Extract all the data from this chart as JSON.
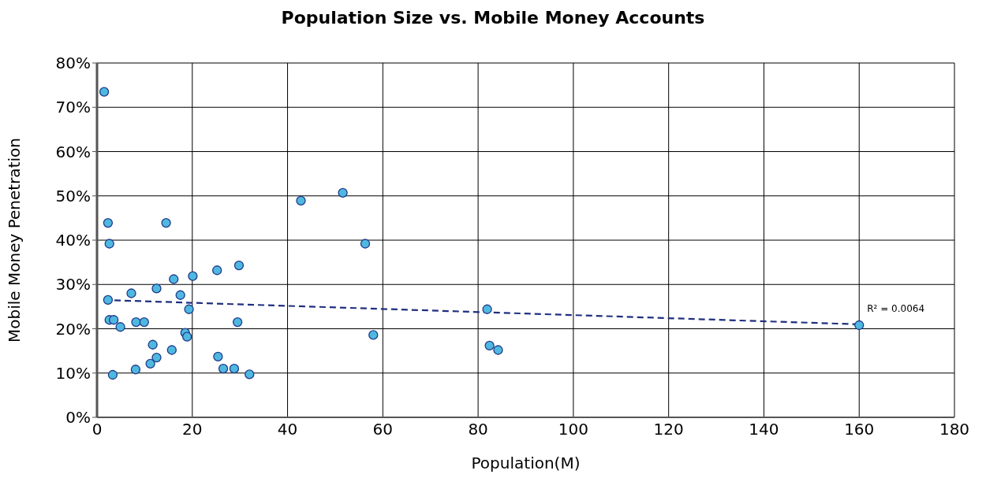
{
  "chart_data": {
    "type": "scatter",
    "title": "Population Size vs. Mobile Money Accounts",
    "xlabel": "Population(M)",
    "ylabel": "Mobile Money Penetration",
    "xlim": [
      0,
      180
    ],
    "xticks": [
      0,
      20,
      40,
      60,
      80,
      100,
      120,
      140,
      160,
      180
    ],
    "ylim": [
      0,
      80
    ],
    "yticks": [
      {
        "value": 0,
        "label": "0%"
      },
      {
        "value": 10,
        "label": "10%"
      },
      {
        "value": 20,
        "label": "20%"
      },
      {
        "value": 30,
        "label": "30%"
      },
      {
        "value": 40,
        "label": "40%"
      },
      {
        "value": 50,
        "label": "50%"
      },
      {
        "value": 60,
        "label": "60%"
      },
      {
        "value": 70,
        "label": "70%"
      },
      {
        "value": 80,
        "label": "80%"
      }
    ],
    "grid": true,
    "legend": false,
    "series": [
      {
        "color": "#4fb8e0",
        "marker": "circle",
        "x": [
          1.5,
          2.3,
          2.6,
          2.3,
          2.6,
          3.5,
          3.3,
          4.9,
          7.2,
          8.2,
          8.1,
          9.9,
          11.2,
          11.7,
          12.5,
          12.5,
          14.5,
          15.7,
          16.1,
          17.5,
          18.5,
          18.9,
          19.3,
          20.1,
          25.4,
          25.2,
          26.5,
          28.8,
          29.5,
          29.8,
          32.0,
          42.8,
          51.6,
          56.3,
          58.0,
          81.9,
          82.4,
          84.2,
          160.0
        ],
        "values": [
          73.5,
          43.9,
          39.2,
          26.5,
          22.0,
          22.0,
          9.6,
          20.4,
          28.0,
          21.5,
          10.8,
          21.5,
          12.1,
          16.4,
          13.5,
          29.1,
          43.9,
          15.2,
          31.2,
          27.6,
          19.1,
          18.2,
          24.4,
          31.9,
          13.7,
          33.2,
          11.0,
          11.0,
          21.5,
          34.3,
          9.7,
          48.9,
          50.7,
          39.2,
          18.6,
          24.4,
          16.2,
          15.2,
          20.8
        ]
      },
      {
        "type": "line",
        "color": "#1f2f80",
        "marker": "none",
        "line_style": "dashed",
        "x": [
          1.5,
          160.0
        ],
        "values": [
          26.5,
          21.0
        ]
      }
    ],
    "annotations": [
      "R² = 0.0064"
    ]
  }
}
